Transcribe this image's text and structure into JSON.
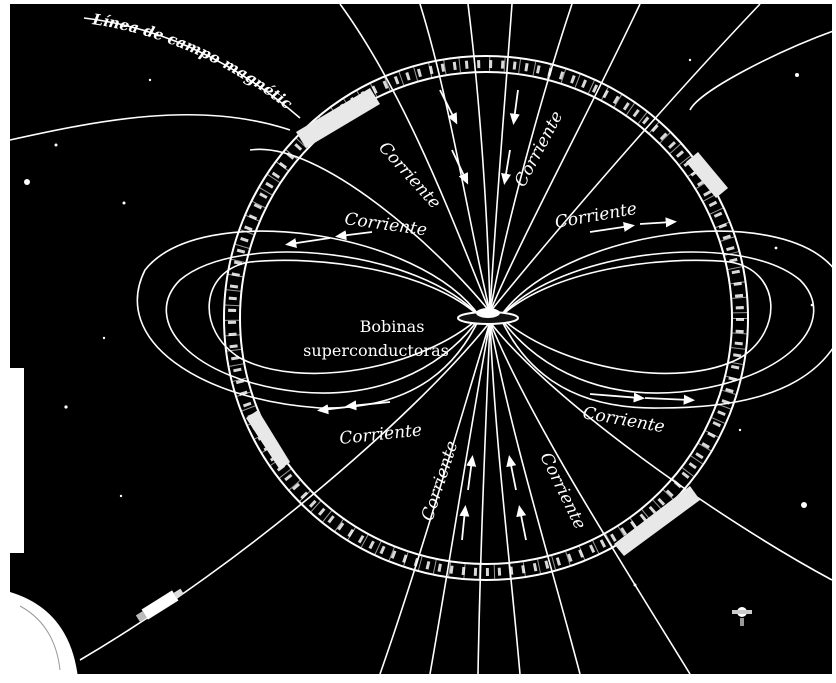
{
  "labels": {
    "field_line": "Línea de campo magnético",
    "coils_line1": "Bobinas",
    "coils_line2": "superconductoras",
    "current": "Corriente"
  },
  "colors": {
    "background": "#000000",
    "lines": "#ffffff",
    "ring_fill": "#0d0d0d",
    "panel": "#e8e8e8",
    "outer_frame": "#ffffff"
  },
  "icons": [
    "star-icon",
    "spacecraft-icon",
    "satellite-icon",
    "planet-edge-icon"
  ]
}
